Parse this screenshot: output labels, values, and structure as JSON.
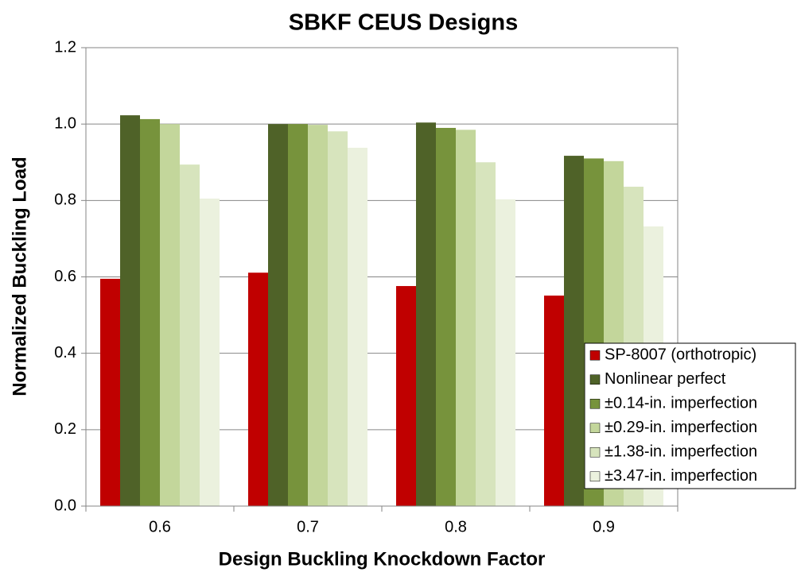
{
  "chart_data": {
    "type": "bar",
    "title": "SBKF CEUS Designs",
    "x_label": "Design Buckling Knockdown Factor",
    "y_label": "Normalized Buckling Load",
    "categories": [
      "0.6",
      "0.7",
      "0.8",
      "0.9"
    ],
    "series": [
      {
        "name": "SP-8007 (orthotropic)",
        "color": "#c00000",
        "values": [
          0.595,
          0.611,
          0.576,
          0.551
        ]
      },
      {
        "name": "Nonlinear perfect",
        "color": "#4f6228",
        "values": [
          1.023,
          1.0,
          1.004,
          0.917
        ]
      },
      {
        "name": "±0.14-in. imperfection",
        "color": "#77933c",
        "values": [
          1.013,
          1.0,
          0.99,
          0.91
        ]
      },
      {
        "name": "±0.29-in. imperfection",
        "color": "#c3d69b",
        "values": [
          1.0,
          0.998,
          0.985,
          0.903
        ]
      },
      {
        "name": "±1.38-in. imperfection",
        "color": "#d7e4bd",
        "values": [
          0.894,
          0.981,
          0.9,
          0.836
        ]
      },
      {
        "name": "±3.47-in. imperfection",
        "color": "#ebf1de",
        "values": [
          0.805,
          0.938,
          0.803,
          0.732
        ]
      }
    ],
    "ylim": [
      0,
      1.2
    ],
    "yticks": [
      {
        "value": 0,
        "label": "0.0"
      },
      0.2,
      0.4,
      0.6,
      0.8,
      {
        "value": 1,
        "label": "1.0"
      },
      1.2
    ],
    "grid": true,
    "legend": "lower right"
  }
}
